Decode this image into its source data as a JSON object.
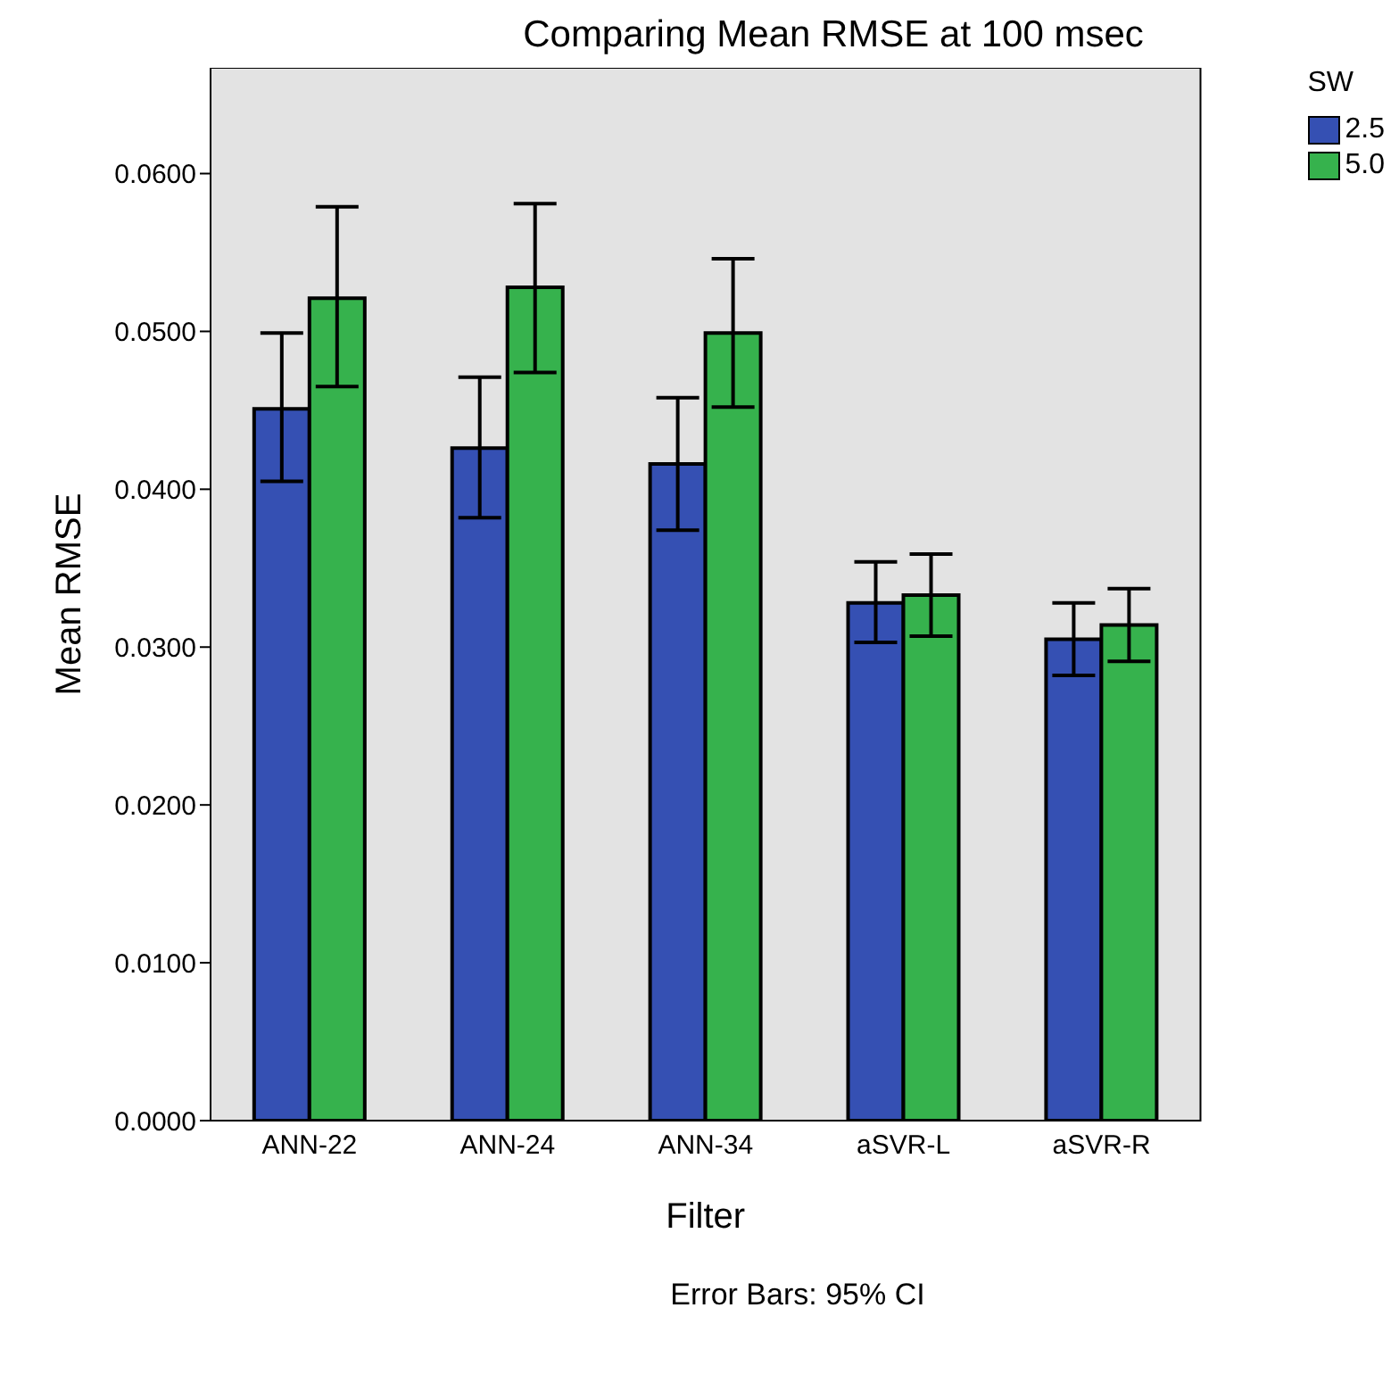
{
  "chart_data": {
    "type": "bar",
    "title": "Comparing Mean RMSE at 100 msec",
    "xlabel": "Filter",
    "ylabel": "Mean RMSE",
    "legend_title": "SW",
    "legend": "top right",
    "grid": false,
    "annotations": [
      "Error Bars: 95% CI"
    ],
    "categories": [
      "ANN-22",
      "ANN-24",
      "ANN-34",
      "aSVR-L",
      "aSVR-R"
    ],
    "ylim": [
      0,
      0.0667
    ],
    "yticks": [
      {
        "value": 0,
        "label": "0.0000"
      },
      {
        "value": 0.01,
        "label": "0.0100"
      },
      {
        "value": 0.02,
        "label": "0.0200"
      },
      {
        "value": 0.03,
        "label": "0.0300"
      },
      {
        "value": 0.04,
        "label": "0.0400"
      },
      {
        "value": 0.05,
        "label": "0.0500"
      },
      {
        "value": 0.06,
        "label": "0.0600"
      }
    ],
    "series": [
      {
        "name": "2.5",
        "color": "#3550b3",
        "values": [
          0.0451,
          0.0426,
          0.0416,
          0.0328,
          0.0305
        ],
        "errors": [
          [
            0.0405,
            0.0499
          ],
          [
            0.0382,
            0.0471
          ],
          [
            0.0374,
            0.0458
          ],
          [
            0.0303,
            0.0354
          ],
          [
            0.0282,
            0.0328
          ]
        ]
      },
      {
        "name": "5.0",
        "color": "#36b24d",
        "values": [
          0.0521,
          0.0528,
          0.0499,
          0.0333,
          0.0314
        ],
        "errors": [
          [
            0.0465,
            0.0579
          ],
          [
            0.0474,
            0.0581
          ],
          [
            0.0452,
            0.0546
          ],
          [
            0.0307,
            0.0359
          ],
          [
            0.0291,
            0.0337
          ]
        ]
      }
    ]
  }
}
